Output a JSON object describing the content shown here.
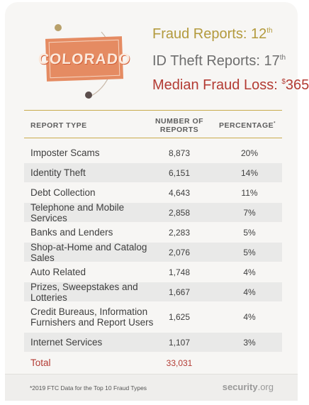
{
  "logo": {
    "text": "COLORADO"
  },
  "stats": {
    "fraud_label": "Fraud Reports: 12",
    "fraud_suffix": "th",
    "id_label": "ID Theft Reports: 17",
    "id_suffix": "th",
    "loss_label": "Median Fraud Loss: ",
    "loss_currency": "$",
    "loss_value": "365"
  },
  "table": {
    "headers": {
      "type": "REPORT TYPE",
      "num_line1": "NUMBER OF",
      "num_line2": "REPORTS",
      "pct": "PERCENTAGE",
      "pct_mark": "*"
    },
    "rows": [
      {
        "type": "Imposter Scams",
        "num": "8,873",
        "pct": "20%"
      },
      {
        "type": "Identity Theft",
        "num": "6,151",
        "pct": "14%"
      },
      {
        "type": "Debt Collection",
        "num": "4,643",
        "pct": "11%"
      },
      {
        "type": "Telephone and Mobile Services",
        "num": "2,858",
        "pct": "7%"
      },
      {
        "type": "Banks and Lenders",
        "num": "2,283",
        "pct": "5%"
      },
      {
        "type": "Shop-at-Home and Catalog Sales",
        "num": "2,076",
        "pct": "5%"
      },
      {
        "type": "Auto Related",
        "num": "1,748",
        "pct": "4%"
      },
      {
        "type": "Prizes, Sweepstakes and Lotteries",
        "num": "1,667",
        "pct": "4%"
      },
      {
        "type": "Credit Bureaus, Information Furnishers and Report Users",
        "num": "1,625",
        "pct": "4%"
      },
      {
        "type": "Internet Services",
        "num": "1,107",
        "pct": "3%"
      }
    ],
    "total": {
      "type": "Total",
      "num": "33,031"
    }
  },
  "footer": {
    "note": "*2019 FTC Data for the Top 10 Fraud Types",
    "brand_main": "security",
    "brand_tld": ".org"
  },
  "colors": {
    "gold": "#b39a3d",
    "gray": "#6e6e6e",
    "red": "#b33b33",
    "plate": "#e58b62",
    "ring": "#5b4e4c"
  }
}
